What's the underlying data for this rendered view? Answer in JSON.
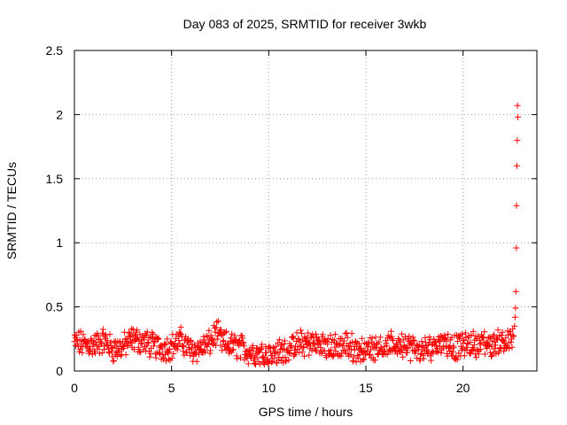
{
  "chart_data": {
    "type": "scatter",
    "title": "Day 083 of 2025, SRMTID for receiver 3wkb",
    "xlabel": "GPS time / hours",
    "ylabel": "SRMTID / TECUs",
    "xlim": [
      0,
      23.8
    ],
    "ylim": [
      0,
      2.5
    ],
    "xticks": [
      0,
      5,
      10,
      15,
      20
    ],
    "xtick_labels": [
      "0",
      "5",
      "10",
      "15",
      "20"
    ],
    "yticks": [
      0,
      0.5,
      1,
      1.5,
      2,
      2.5
    ],
    "ytick_labels": [
      "0",
      "0.5",
      "1",
      "1.5",
      "2",
      "2.5"
    ],
    "grid": true,
    "marker": "+",
    "color": "#ff0000",
    "sample_interval_hours": 0.025,
    "series": [
      {
        "name": "SRMTID",
        "baseline_anchors": {
          "x": [
            0.0,
            0.5,
            1.0,
            1.5,
            2.0,
            2.5,
            3.0,
            3.5,
            4.0,
            4.5,
            5.0,
            5.5,
            6.0,
            6.5,
            7.0,
            7.3,
            7.6,
            8.0,
            8.5,
            9.0,
            9.5,
            10.0,
            10.5,
            11.0,
            11.5,
            12.0,
            12.5,
            13.0,
            13.5,
            14.0,
            14.5,
            15.0,
            15.5,
            16.0,
            16.5,
            17.0,
            17.5,
            18.0,
            18.5,
            19.0,
            19.5,
            20.0,
            20.5,
            21.0,
            21.5,
            22.0,
            22.5,
            22.6
          ],
          "y": [
            0.22,
            0.21,
            0.2,
            0.24,
            0.17,
            0.19,
            0.25,
            0.23,
            0.2,
            0.18,
            0.19,
            0.24,
            0.16,
            0.18,
            0.22,
            0.3,
            0.22,
            0.2,
            0.19,
            0.15,
            0.14,
            0.13,
            0.14,
            0.17,
            0.2,
            0.22,
            0.21,
            0.19,
            0.18,
            0.2,
            0.17,
            0.16,
            0.2,
            0.18,
            0.2,
            0.21,
            0.17,
            0.15,
            0.2,
            0.24,
            0.18,
            0.2,
            0.21,
            0.22,
            0.2,
            0.24,
            0.23,
            0.3
          ]
        },
        "tail_points": {
          "x": [
            22.65,
            22.68,
            22.7,
            22.72,
            22.74,
            22.75,
            22.77,
            22.79,
            22.8
          ],
          "y": [
            0.35,
            0.42,
            0.49,
            0.62,
            0.96,
            1.29,
            1.6,
            1.8,
            2.07
          ]
        },
        "extra_points": {
          "x": [
            22.82
          ],
          "y": [
            1.98
          ]
        }
      }
    ]
  }
}
